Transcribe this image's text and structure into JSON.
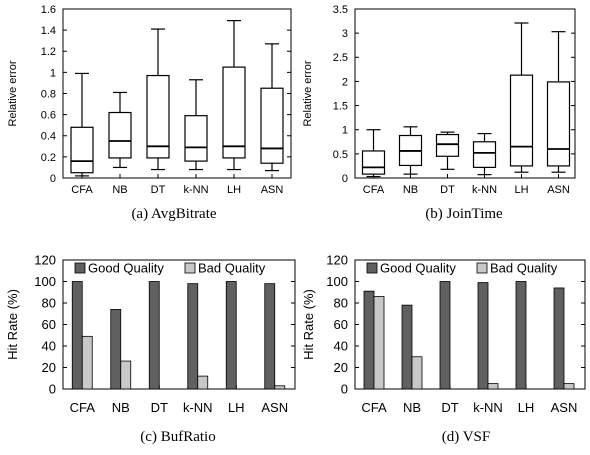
{
  "chart_data": [
    {
      "type": "box",
      "caption": "(a)  AvgBitrate",
      "ylabel": "Relative error",
      "ylim": [
        0,
        1.6
      ],
      "yticks": [
        "0",
        "0.2",
        "0.4",
        "0.6",
        "0.8",
        "1",
        "1.2",
        "1.4",
        "1.6"
      ],
      "categories": [
        "CFA",
        "NB",
        "DT",
        "k-NN",
        "LH",
        "ASN"
      ],
      "boxes": [
        {
          "min": 0.02,
          "q1": 0.05,
          "median": 0.16,
          "q3": 0.48,
          "max": 0.99
        },
        {
          "min": 0.1,
          "q1": 0.19,
          "median": 0.35,
          "q3": 0.62,
          "max": 0.81
        },
        {
          "min": 0.08,
          "q1": 0.19,
          "median": 0.3,
          "q3": 0.97,
          "max": 1.41
        },
        {
          "min": 0.08,
          "q1": 0.16,
          "median": 0.29,
          "q3": 0.59,
          "max": 0.93
        },
        {
          "min": 0.08,
          "q1": 0.19,
          "median": 0.3,
          "q3": 1.05,
          "max": 1.49
        },
        {
          "min": 0.07,
          "q1": 0.14,
          "median": 0.28,
          "q3": 0.85,
          "max": 1.27
        }
      ]
    },
    {
      "type": "box",
      "caption": "(b)  JoinTime",
      "ylabel": "Relative error",
      "ylim": [
        0,
        3.5
      ],
      "yticks": [
        "0",
        "0.5",
        "1",
        "1.5",
        "2",
        "2.5",
        "3",
        "3.5"
      ],
      "categories": [
        "CFA",
        "NB",
        "DT",
        "k-NN",
        "LH",
        "ASN"
      ],
      "boxes": [
        {
          "min": 0.03,
          "q1": 0.08,
          "median": 0.22,
          "q3": 0.56,
          "max": 1.0
        },
        {
          "min": 0.08,
          "q1": 0.26,
          "median": 0.56,
          "q3": 0.88,
          "max": 1.06
        },
        {
          "min": 0.18,
          "q1": 0.45,
          "median": 0.7,
          "q3": 0.9,
          "max": 0.95
        },
        {
          "min": 0.07,
          "q1": 0.22,
          "median": 0.52,
          "q3": 0.75,
          "max": 0.92
        },
        {
          "min": 0.12,
          "q1": 0.25,
          "median": 0.65,
          "q3": 2.13,
          "max": 3.21
        },
        {
          "min": 0.12,
          "q1": 0.25,
          "median": 0.6,
          "q3": 1.99,
          "max": 3.03
        }
      ]
    },
    {
      "type": "bar",
      "caption": "(c)  BufRatio",
      "ylabel": "Hit Rate (%)",
      "ylim": [
        0,
        120
      ],
      "yticks": [
        "0",
        "20",
        "40",
        "60",
        "80",
        "100",
        "120"
      ],
      "categories": [
        "CFA",
        "NB",
        "DT",
        "k-NN",
        "LH",
        "ASN"
      ],
      "legend_position": "top",
      "series": [
        {
          "name": "Good Quality",
          "color": "#606060",
          "values": [
            100,
            74,
            100,
            98,
            100,
            98
          ]
        },
        {
          "name": "Bad Quality",
          "color": "#c8c8c8",
          "values": [
            49,
            26,
            0,
            12,
            0,
            3
          ]
        }
      ]
    },
    {
      "type": "bar",
      "caption": "(d)  VSF",
      "ylabel": "Hit Rate (%)",
      "ylim": [
        0,
        120
      ],
      "yticks": [
        "0",
        "20",
        "40",
        "60",
        "80",
        "100",
        "120"
      ],
      "categories": [
        "CFA",
        "NB",
        "DT",
        "k-NN",
        "LH",
        "ASN"
      ],
      "legend_position": "top",
      "series": [
        {
          "name": "Good Quality",
          "color": "#606060",
          "values": [
            91,
            78,
            100,
            99,
            100,
            94
          ]
        },
        {
          "name": "Bad Quality",
          "color": "#c8c8c8",
          "values": [
            86,
            30,
            0,
            5,
            0,
            5
          ]
        }
      ]
    }
  ]
}
